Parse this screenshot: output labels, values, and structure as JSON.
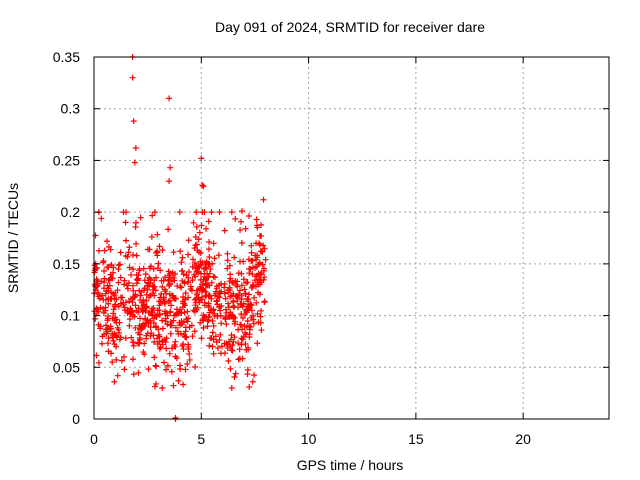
{
  "chart_data": {
    "type": "scatter",
    "title": "Day 091 of 2024, SRMTID for receiver dare",
    "xlabel": "GPS time / hours",
    "ylabel": "SRMTID / TECUs",
    "xlim": [
      0,
      24
    ],
    "ylim": [
      0,
      0.35
    ],
    "xticks": [
      0,
      5,
      10,
      15,
      20
    ],
    "yticks": [
      0,
      0.05,
      0.1,
      0.15,
      0.2,
      0.25,
      0.3,
      0.35
    ],
    "xtick_labels": [
      "0",
      "5",
      "10",
      "15",
      "20"
    ],
    "ytick_labels": [
      "0",
      "0.05",
      "0.1",
      "0.15",
      "0.2",
      "0.25",
      "0.3",
      "0.35"
    ],
    "grid": true,
    "marker": "+",
    "series": [
      {
        "name": "SRMTID",
        "color": "#ff0000",
        "x_range": [
          0,
          8
        ],
        "n_points": 900,
        "notable_points": [
          {
            "x": 1.8,
            "y": 0.35
          },
          {
            "x": 1.8,
            "y": 0.33
          },
          {
            "x": 1.85,
            "y": 0.288
          },
          {
            "x": 1.95,
            "y": 0.262
          },
          {
            "x": 1.9,
            "y": 0.248
          },
          {
            "x": 3.5,
            "y": 0.31
          },
          {
            "x": 3.55,
            "y": 0.243
          },
          {
            "x": 3.5,
            "y": 0.23
          },
          {
            "x": 5.0,
            "y": 0.252
          },
          {
            "x": 5.05,
            "y": 0.226
          },
          {
            "x": 5.1,
            "y": 0.225
          },
          {
            "x": 7.9,
            "y": 0.212
          },
          {
            "x": 6.9,
            "y": 0.201
          },
          {
            "x": 0.95,
            "y": 0.036
          },
          {
            "x": 7.4,
            "y": 0.036
          },
          {
            "x": 3.8,
            "y": 0.001
          },
          {
            "x": 3.8,
            "y": 0.0
          }
        ]
      }
    ]
  }
}
